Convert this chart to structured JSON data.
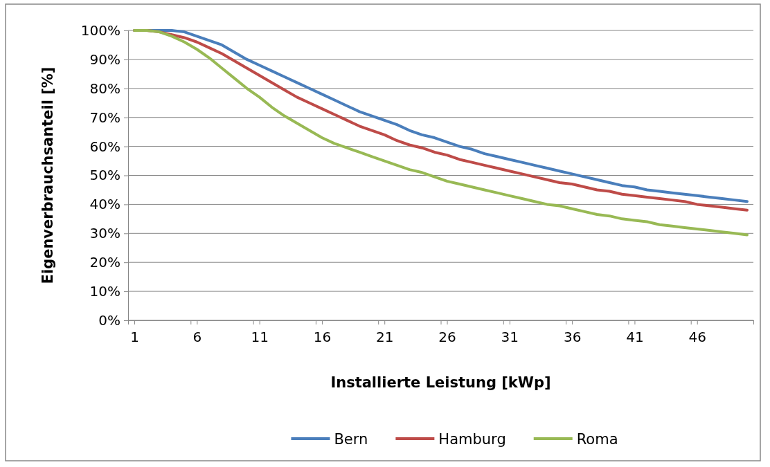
{
  "chart_data": {
    "type": "line",
    "xlabel": "Installierte Leistung [kWp]",
    "ylabel": "Eigenverbrauchsanteil [%]",
    "x": [
      1,
      2,
      3,
      4,
      5,
      6,
      7,
      8,
      9,
      10,
      11,
      12,
      13,
      14,
      15,
      16,
      17,
      18,
      19,
      20,
      21,
      22,
      23,
      24,
      25,
      26,
      27,
      28,
      29,
      30,
      31,
      32,
      33,
      34,
      35,
      36,
      37,
      38,
      39,
      40,
      41,
      42,
      43,
      44,
      45,
      46,
      47,
      48,
      49,
      50
    ],
    "xlim": [
      0.5,
      50.5
    ],
    "xticks": [
      1,
      6,
      11,
      16,
      21,
      26,
      31,
      36,
      41,
      46,
      {
        "value": 0.5,
        "label": null
      },
      {
        "value": 5.5,
        "label": null
      },
      {
        "value": 10.5,
        "label": null
      },
      {
        "value": 15.5,
        "label": null
      },
      {
        "value": 20.5,
        "label": null
      },
      {
        "value": 25.5,
        "label": null
      },
      {
        "value": 30.5,
        "label": null
      },
      {
        "value": 35.5,
        "label": null
      },
      {
        "value": 40.5,
        "label": null
      },
      {
        "value": 45.5,
        "label": null
      },
      {
        "value": 50.5,
        "label": null
      }
    ],
    "series": [
      {
        "name": "Bern",
        "color": "#4a7ebb",
        "values": [
          100,
          100,
          100,
          100,
          99.5,
          98,
          96.5,
          95,
          92.5,
          90,
          88,
          86,
          84,
          82,
          80,
          78,
          76,
          74,
          72,
          70.5,
          69,
          67.5,
          65.5,
          64,
          63,
          61.5,
          60,
          59,
          57.5,
          56.5,
          55.5,
          54.5,
          53.5,
          52.5,
          51.5,
          50.5,
          49.5,
          48.5,
          47.5,
          46.5,
          46,
          45,
          44.5,
          44,
          43.5,
          43,
          42.5,
          42,
          41.5,
          41
        ]
      },
      {
        "name": "Hamburg",
        "color": "#be4b48",
        "values": [
          100,
          100,
          99.5,
          98.5,
          97.5,
          96,
          94,
          92,
          89.5,
          87,
          84.5,
          82,
          79.5,
          77,
          75,
          73,
          71,
          69,
          67,
          65.5,
          64,
          62,
          60.5,
          59.5,
          58,
          57,
          55.5,
          54.5,
          53.5,
          52.5,
          51.5,
          50.5,
          49.5,
          48.5,
          47.5,
          47,
          46,
          45,
          44.5,
          43.5,
          43,
          42.5,
          42,
          41.5,
          41,
          40,
          39.5,
          39,
          38.5,
          38
        ]
      },
      {
        "name": "Roma",
        "color": "#98b954",
        "values": [
          100,
          100,
          99.5,
          98,
          96,
          93.5,
          90.5,
          87,
          83.5,
          80,
          77,
          73.5,
          70.5,
          68,
          65.5,
          63,
          61,
          59.5,
          58,
          56.5,
          55,
          53.5,
          52,
          51,
          49.5,
          48,
          47,
          46,
          45,
          44,
          43,
          42,
          41,
          40,
          39.5,
          38.5,
          37.5,
          36.5,
          36,
          35,
          34.5,
          34,
          33,
          32.5,
          32,
          31.5,
          31,
          30.5,
          30,
          29.5
        ]
      }
    ],
    "ylim": [
      0,
      100
    ],
    "yticks": [
      {
        "value": 0,
        "label": "0%"
      },
      {
        "value": 10,
        "label": "10%"
      },
      {
        "value": 20,
        "label": "20%"
      },
      {
        "value": 30,
        "label": "30%"
      },
      {
        "value": 40,
        "label": "40%"
      },
      {
        "value": 50,
        "label": "50%"
      },
      {
        "value": 60,
        "label": "60%"
      },
      {
        "value": 70,
        "label": "70%"
      },
      {
        "value": 80,
        "label": "80%"
      },
      {
        "value": 90,
        "label": "90%"
      },
      {
        "value": 100,
        "label": "100%"
      }
    ],
    "grid": "y",
    "legend": "bottom",
    "marker": "none",
    "line_style": "solid"
  }
}
